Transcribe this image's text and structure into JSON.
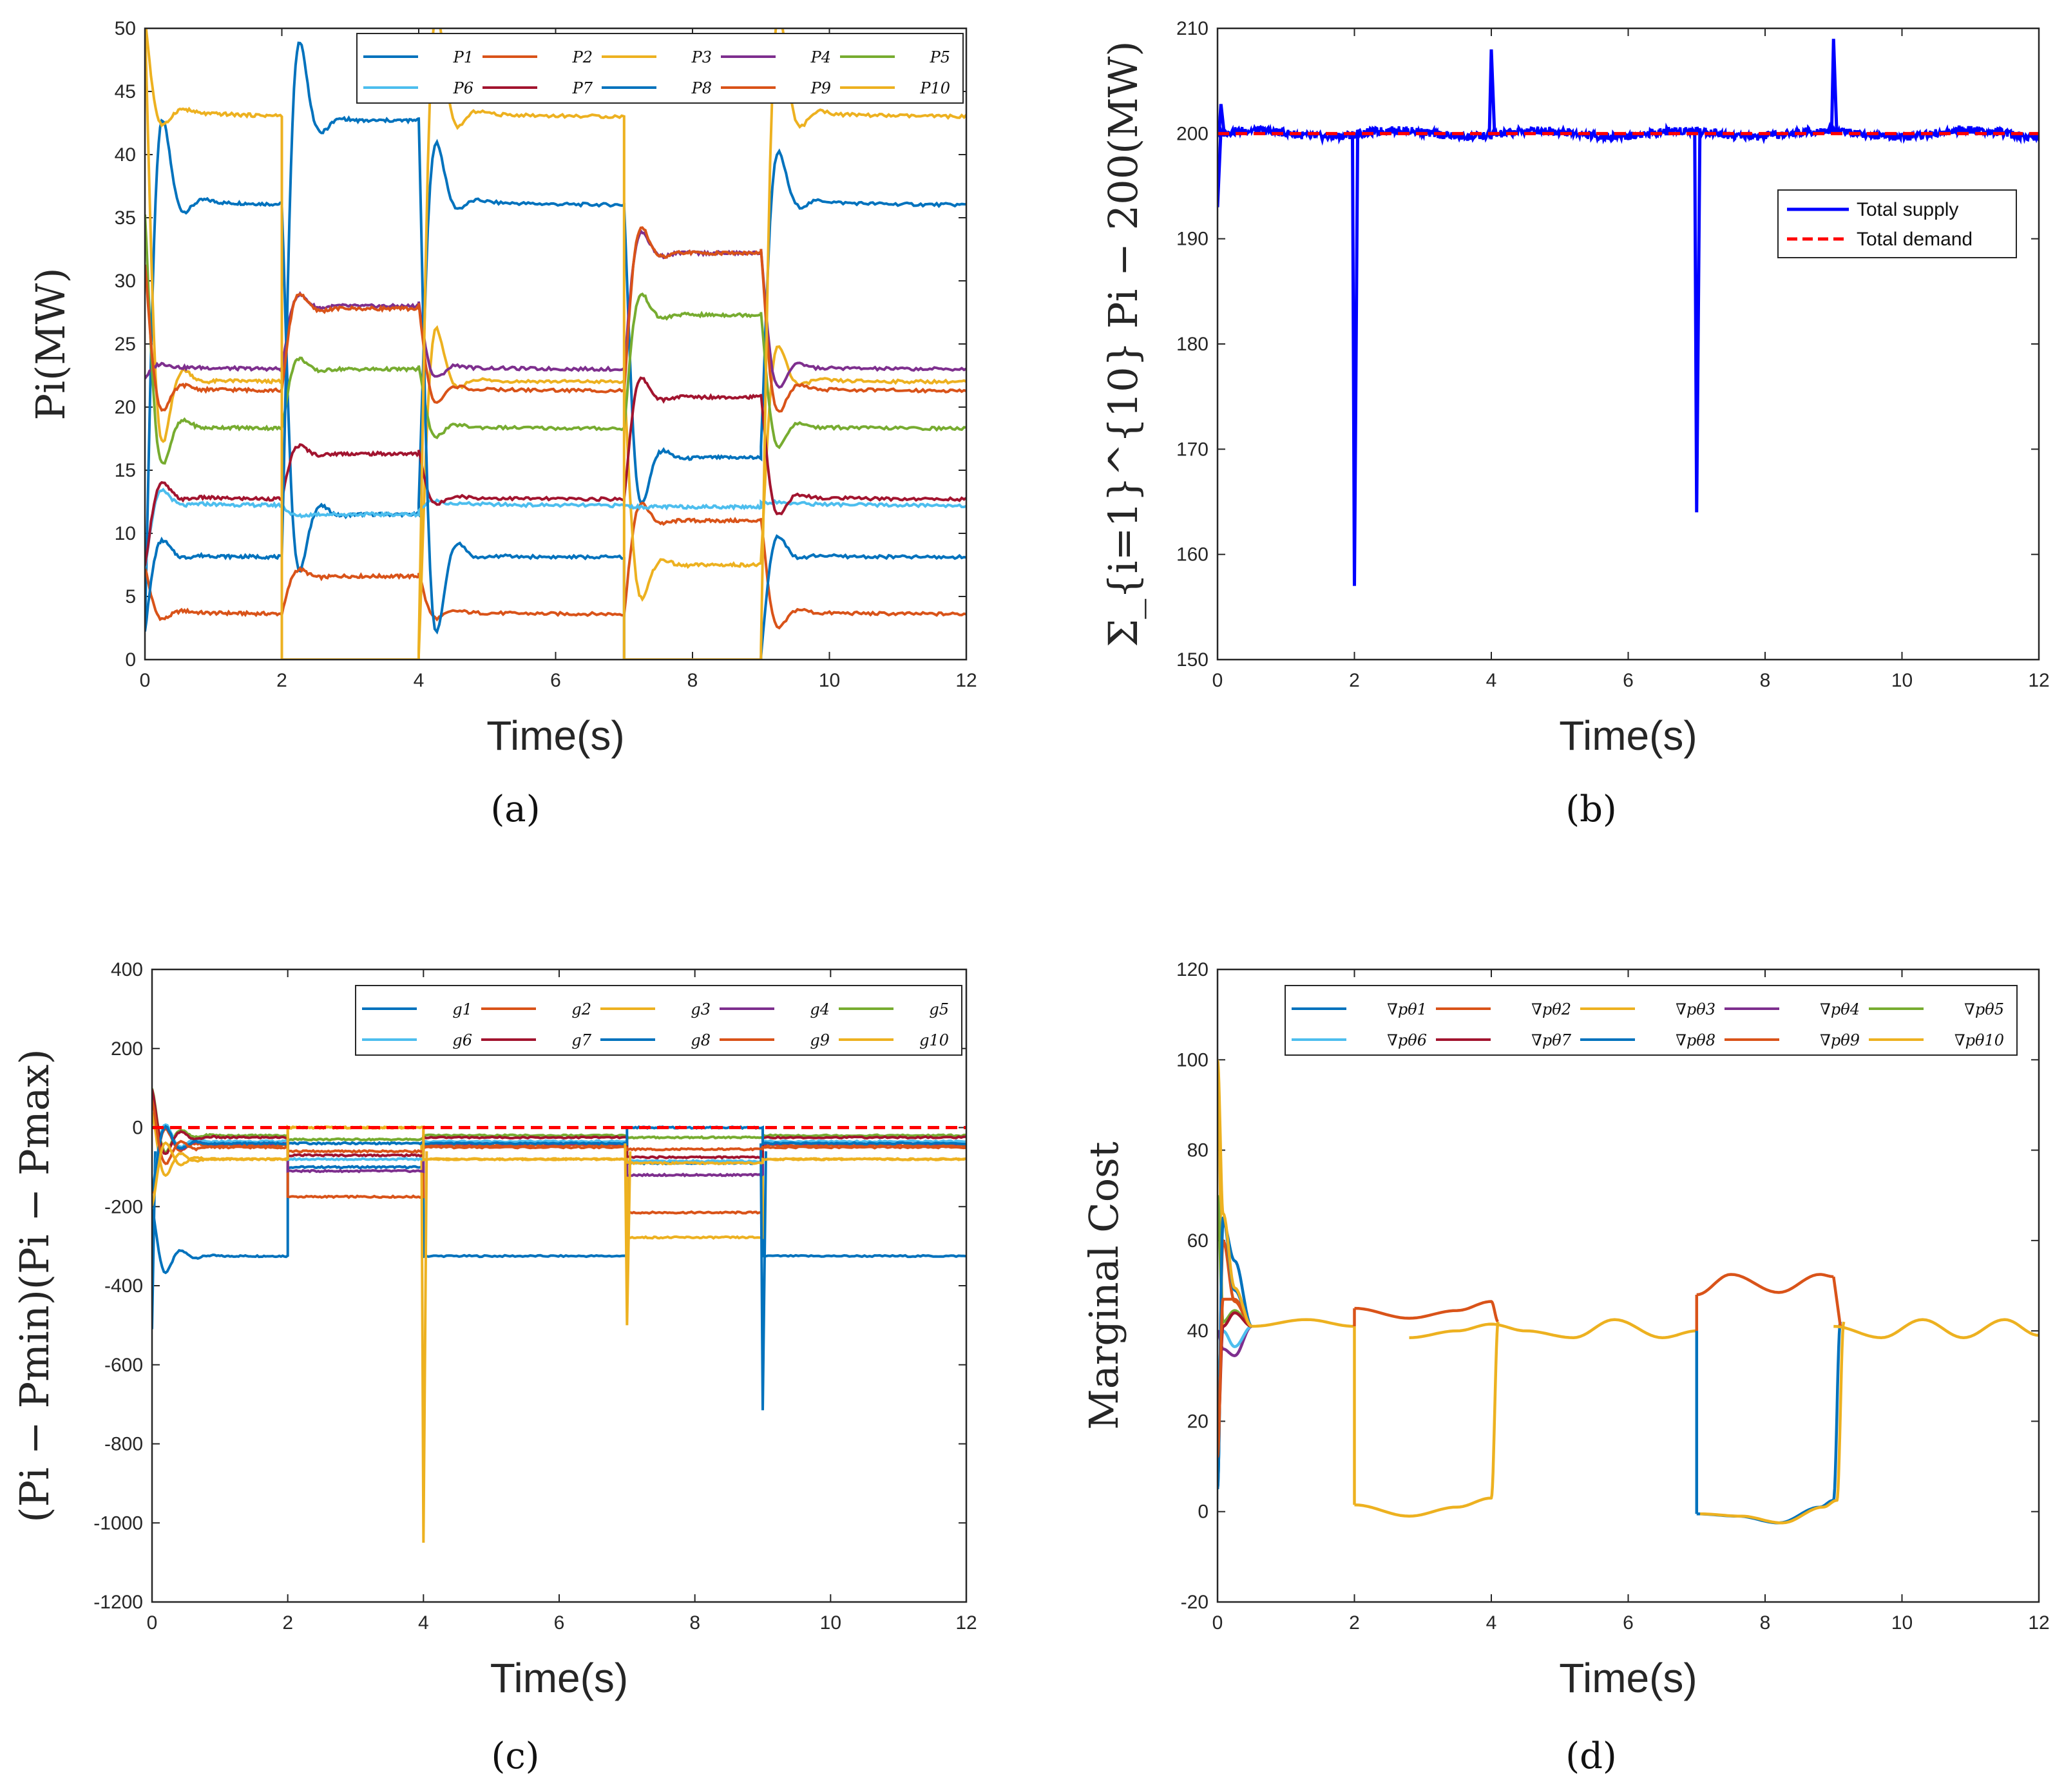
{
  "chart_data": [
    {
      "id": "a",
      "type": "line",
      "panel_label": "(a)",
      "xlabel": "Time(s)",
      "ylabel": "Pi(MW)",
      "xlim": [
        0,
        12
      ],
      "ylim": [
        0,
        50
      ],
      "xticks": [
        "0",
        "2",
        "4",
        "6",
        "8",
        "10",
        "12"
      ],
      "yticks": [
        "0",
        "5",
        "10",
        "15",
        "20",
        "25",
        "30",
        "35",
        "40",
        "45",
        "50"
      ],
      "legend": {
        "position": "top-right",
        "ncol": 5
      },
      "segments": [
        0,
        2,
        4,
        7,
        9,
        12
      ],
      "series": [
        {
          "name": "P1",
          "color": "#0072BD",
          "levels": [
            36,
            11.5,
            36,
            16,
            36
          ],
          "start": 2
        },
        {
          "name": "P2",
          "color": "#D95319",
          "levels": [
            3.6,
            6.6,
            3.6,
            11,
            3.6
          ],
          "start": 7
        },
        {
          "name": "P3",
          "color": "#EDB120",
          "levels": [
            22,
            0,
            22,
            7.5,
            22
          ],
          "start": 50
        },
        {
          "name": "P4",
          "color": "#7E2F8E",
          "levels": [
            23,
            28,
            23,
            32.2,
            23
          ],
          "start": 22
        },
        {
          "name": "P5",
          "color": "#77AC30",
          "levels": [
            18.3,
            23,
            18.3,
            27.3,
            18.3
          ],
          "start": 35
        },
        {
          "name": "P6",
          "color": "#4DBEEE",
          "levels": [
            12.2,
            11.5,
            12.2,
            12.1,
            12.2
          ],
          "start": 7
        },
        {
          "name": "P7",
          "color": "#A2142F",
          "levels": [
            12.7,
            16.3,
            12.7,
            20.8,
            12.7
          ],
          "start": 7
        },
        {
          "name": "P8",
          "color": "#0072BD",
          "levels": [
            8.1,
            42.7,
            8.1,
            0,
            8.1
          ],
          "start": 2
        },
        {
          "name": "P9",
          "color": "#D95319",
          "levels": [
            21.3,
            27.8,
            21.3,
            32.2,
            21.3
          ],
          "start": 31
        },
        {
          "name": "P10",
          "color": "#EDB120",
          "levels": [
            43,
            0,
            43,
            0,
            43
          ],
          "start": 50
        }
      ]
    },
    {
      "id": "b",
      "type": "line",
      "panel_label": "(b)",
      "xlabel": "Time(s)",
      "ylabel": "Σ_{i=1}^{10} Pi − 200(MW)",
      "xlim": [
        0,
        12
      ],
      "ylim": [
        150,
        210
      ],
      "xticks": [
        "0",
        "2",
        "4",
        "6",
        "8",
        "10",
        "12"
      ],
      "yticks": [
        "150",
        "160",
        "170",
        "180",
        "190",
        "200",
        "210"
      ],
      "legend": {
        "position": "top-right"
      },
      "series": [
        {
          "name": "Total supply",
          "color": "#0000FF",
          "baseline": 200,
          "spikes": [
            [
              0,
              193
            ],
            [
              0.05,
              202.8
            ],
            [
              2,
              157
            ],
            [
              4,
              208
            ],
            [
              7,
              164
            ],
            [
              9,
              209
            ]
          ]
        },
        {
          "name": "Total demand",
          "color": "#FF0000",
          "baseline": 200
        }
      ]
    },
    {
      "id": "c",
      "type": "line",
      "panel_label": "(c)",
      "xlabel": "Time(s)",
      "ylabel": "(Pi − Pmin)(Pi − Pmax)",
      "xlim": [
        0,
        12
      ],
      "ylim": [
        -1200,
        400
      ],
      "xticks": [
        "0",
        "2",
        "4",
        "6",
        "8",
        "10",
        "12"
      ],
      "yticks": [
        "-1200",
        "-1000",
        "-800",
        "-600",
        "-400",
        "-200",
        "0",
        "200",
        "400"
      ],
      "legend": {
        "position": "top-right",
        "ncol": 5
      },
      "segments": [
        0,
        2,
        4,
        7,
        9,
        12
      ],
      "series": [
        {
          "name": "g1",
          "color": "#0072BD",
          "levels": [
            -325,
            -100,
            -325,
            -90,
            -325
          ],
          "spike": [
            0,
            -510
          ]
        },
        {
          "name": "g2",
          "color": "#D95319",
          "levels": [
            -45,
            -175,
            -45,
            -215,
            -45
          ]
        },
        {
          "name": "g3",
          "color": "#EDB120",
          "levels": [
            -80,
            0,
            -80,
            -278,
            -80
          ],
          "spike": [
            4,
            -1050
          ]
        },
        {
          "name": "g4",
          "color": "#7E2F8E",
          "levels": [
            -40,
            -110,
            -40,
            -120,
            -40
          ]
        },
        {
          "name": "g5",
          "color": "#77AC30",
          "levels": [
            -20,
            -30,
            -20,
            -25,
            -20
          ]
        },
        {
          "name": "g6",
          "color": "#4DBEEE",
          "levels": [
            -35,
            -80,
            -35,
            -85,
            -35
          ]
        },
        {
          "name": "g7",
          "color": "#A2142F",
          "levels": [
            -25,
            -70,
            -25,
            -75,
            -25
          ]
        },
        {
          "name": "g8",
          "color": "#0072BD",
          "levels": [
            -40,
            -40,
            -40,
            0,
            -40
          ],
          "spike": [
            9,
            -715
          ]
        },
        {
          "name": "g9",
          "color": "#D95319",
          "levels": [
            -50,
            -60,
            -50,
            -55,
            -50
          ]
        },
        {
          "name": "g10",
          "color": "#EDB120",
          "levels": [
            -80,
            0,
            -80,
            -90,
            -80
          ],
          "spike": [
            7,
            -500
          ]
        }
      ],
      "reference_line": {
        "value": 0,
        "color": "#FF0000"
      }
    },
    {
      "id": "d",
      "type": "line",
      "panel_label": "(d)",
      "xlabel": "Time(s)",
      "ylabel": "Marginal Cost",
      "xlim": [
        0,
        12
      ],
      "ylim": [
        -20,
        120
      ],
      "xticks": [
        "0",
        "2",
        "4",
        "6",
        "8",
        "10",
        "12"
      ],
      "yticks": [
        "-20",
        "0",
        "20",
        "40",
        "60",
        "80",
        "100",
        "120"
      ],
      "legend": {
        "position": "top-right",
        "ncol": 5
      },
      "series": [
        {
          "name": "∇pθ1",
          "color": "#0072BD"
        },
        {
          "name": "∇pθ2",
          "color": "#D95319"
        },
        {
          "name": "∇pθ3",
          "color": "#EDB120"
        },
        {
          "name": "∇pθ4",
          "color": "#7E2F8E"
        },
        {
          "name": "∇pθ5",
          "color": "#77AC30"
        },
        {
          "name": "∇pθ6",
          "color": "#4DBEEE"
        },
        {
          "name": "∇pθ7",
          "color": "#A2142F"
        },
        {
          "name": "∇pθ8",
          "color": "#0072BD"
        },
        {
          "name": "∇pθ9",
          "color": "#D95319"
        },
        {
          "name": "∇pθ10",
          "color": "#EDB120"
        }
      ],
      "curves": {
        "consensus": [
          [
            0.5,
            41
          ],
          [
            1.3,
            42.5
          ],
          [
            2,
            41
          ],
          [
            2.8,
            38.5
          ],
          [
            3.5,
            40
          ],
          [
            4,
            41.5
          ],
          [
            4.5,
            40
          ],
          [
            5.2,
            38.5
          ],
          [
            5.8,
            42.5
          ],
          [
            6.5,
            38.5
          ],
          [
            7,
            40
          ],
          [
            9,
            41
          ],
          [
            9.7,
            38.5
          ],
          [
            10.3,
            42.5
          ],
          [
            10.9,
            38.5
          ],
          [
            11.5,
            42.5
          ],
          [
            12,
            39
          ]
        ],
        "upper": [
          [
            2,
            45
          ],
          [
            2.8,
            42.8
          ],
          [
            3.5,
            44.5
          ],
          [
            4,
            46.5
          ],
          [
            4.1,
            42
          ]
        ],
        "upper2": [
          [
            7,
            48
          ],
          [
            7.5,
            52.5
          ],
          [
            8.2,
            48.5
          ],
          [
            8.8,
            52.5
          ],
          [
            9,
            52
          ]
        ],
        "lower": [
          [
            2,
            1.5
          ],
          [
            2.8,
            -1
          ],
          [
            3.5,
            1
          ],
          [
            4,
            3
          ],
          [
            4.1,
            42
          ]
        ],
        "lower2": [
          [
            7,
            -0.5
          ],
          [
            7.6,
            -1
          ],
          [
            8.2,
            -2.5
          ],
          [
            8.8,
            1
          ],
          [
            9,
            2.5
          ],
          [
            9.1,
            42
          ]
        ]
      }
    }
  ]
}
